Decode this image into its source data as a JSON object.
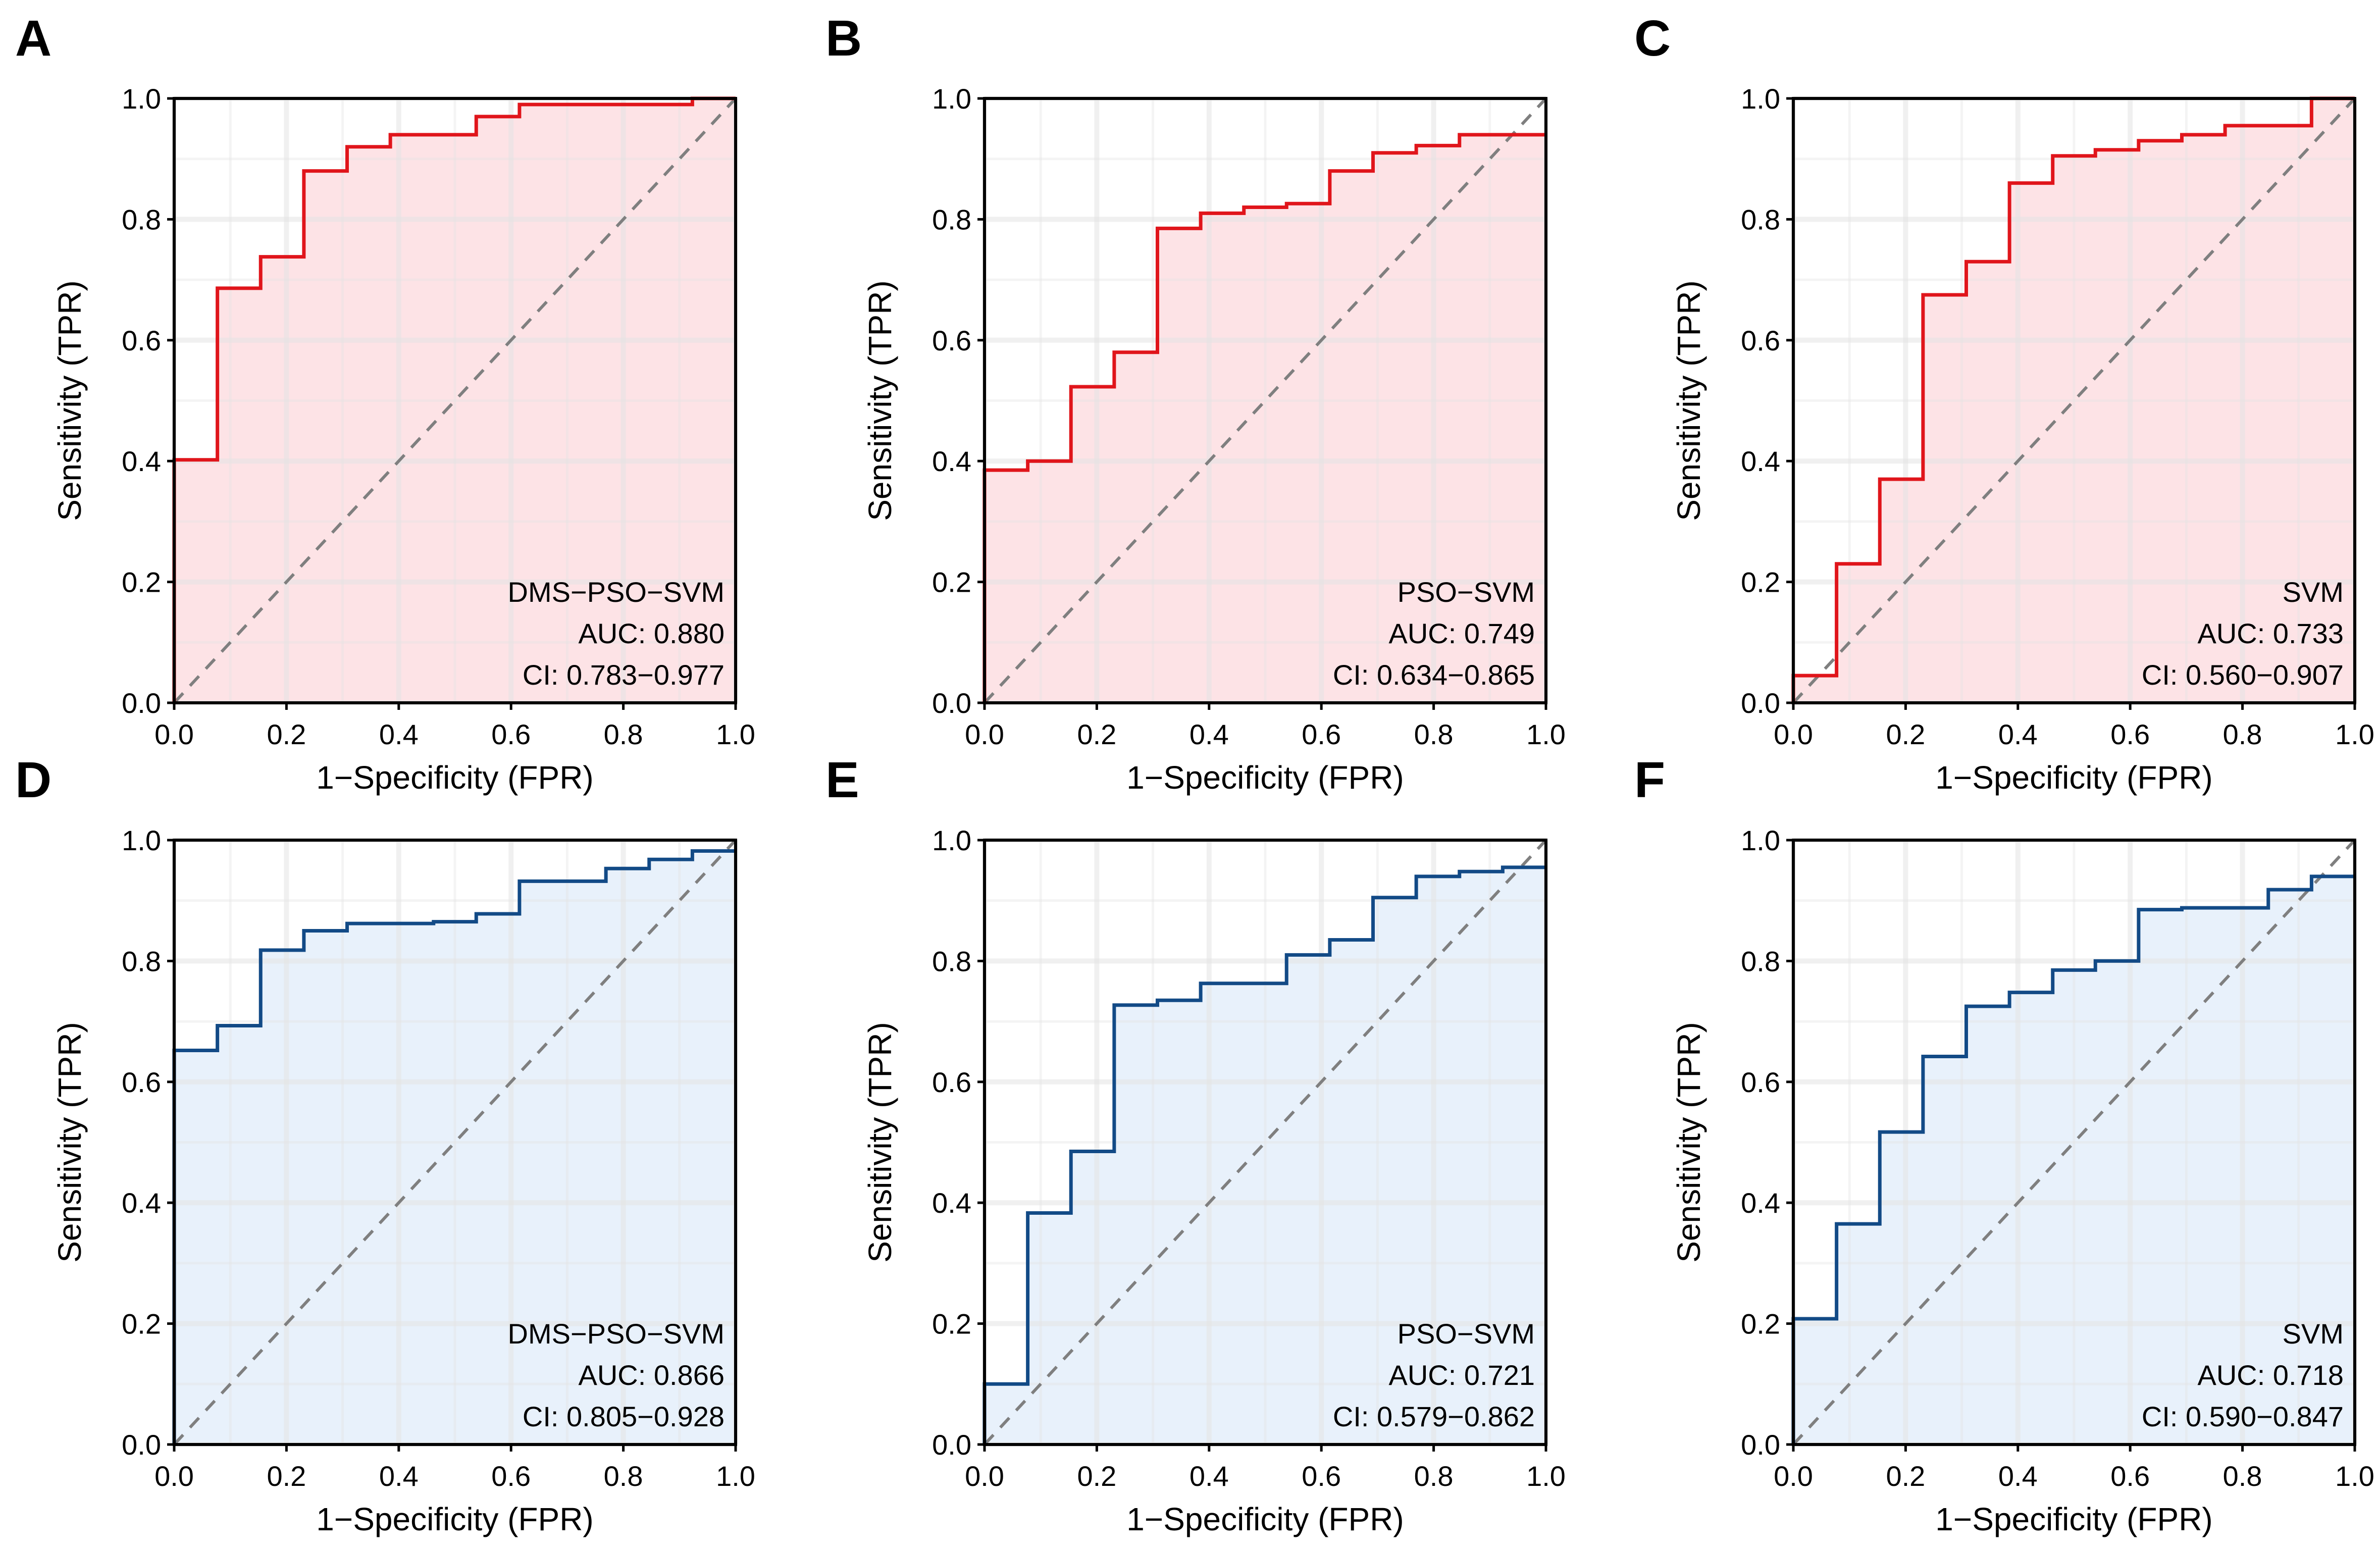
{
  "colors": {
    "train_line": "#e0151b",
    "train_fill": "#fde3e6",
    "test_line": "#124a86",
    "test_fill": "#e8f1fb",
    "diagonal": "#7f7f7f",
    "grid": "#e3e3e3"
  },
  "chart_data": [
    {
      "panel": "A",
      "type": "line",
      "model": "DMS−PSO−SVM",
      "auc_label": "AUC: 0.880",
      "ci_label": "CI: 0.783−0.977",
      "xlabel": "1−Specificity (FPR)",
      "ylabel": "Sensitivity (TPR)",
      "xticks": [
        "0.0",
        "0.2",
        "0.4",
        "0.6",
        "0.8",
        "1.0"
      ],
      "yticks": [
        "0.0",
        "0.2",
        "0.4",
        "0.6",
        "0.8",
        "1.0"
      ],
      "xlim": [
        0,
        1
      ],
      "ylim": [
        0,
        1
      ],
      "theme": "train",
      "fpr": [
        0,
        0,
        0,
        0.077,
        0.077,
        0.154,
        0.154,
        0.231,
        0.231,
        0.308,
        0.308,
        0.385,
        0.385,
        0.538,
        0.538,
        0.615,
        0.615,
        0.923,
        0.923,
        1.0
      ],
      "tpr": [
        0,
        0.402,
        0.402,
        0.402,
        0.686,
        0.686,
        0.738,
        0.738,
        0.88,
        0.88,
        0.92,
        0.92,
        0.94,
        0.94,
        0.97,
        0.97,
        0.99,
        0.99,
        1.0,
        1.0
      ]
    },
    {
      "panel": "B",
      "type": "line",
      "model": "PSO−SVM",
      "auc_label": "AUC: 0.749",
      "ci_label": "CI: 0.634−0.865",
      "xlabel": "1−Specificity (FPR)",
      "ylabel": "Sensitivity (TPR)",
      "xticks": [
        "0.0",
        "0.2",
        "0.4",
        "0.6",
        "0.8",
        "1.0"
      ],
      "yticks": [
        "0.0",
        "0.2",
        "0.4",
        "0.6",
        "0.8",
        "1.0"
      ],
      "xlim": [
        0,
        1
      ],
      "ylim": [
        0,
        1
      ],
      "theme": "train",
      "fpr": [
        0,
        0,
        0.077,
        0.077,
        0.154,
        0.154,
        0.231,
        0.231,
        0.308,
        0.308,
        0.385,
        0.385,
        0.462,
        0.462,
        0.538,
        0.538,
        0.615,
        0.615,
        0.692,
        0.692,
        0.769,
        0.769,
        0.846,
        0.846,
        1.0
      ],
      "tpr": [
        0,
        0.385,
        0.385,
        0.4,
        0.4,
        0.523,
        0.523,
        0.58,
        0.58,
        0.785,
        0.785,
        0.81,
        0.81,
        0.82,
        0.82,
        0.826,
        0.826,
        0.88,
        0.88,
        0.91,
        0.91,
        0.922,
        0.922,
        0.94,
        0.94
      ]
    },
    {
      "panel": "C",
      "type": "line",
      "model": "SVM",
      "auc_label": "AUC: 0.733",
      "ci_label": "CI: 0.560−0.907",
      "xlabel": "1−Specificity (FPR)",
      "ylabel": "Sensitivity (TPR)",
      "xticks": [
        "0.0",
        "0.2",
        "0.4",
        "0.6",
        "0.8",
        "1.0"
      ],
      "yticks": [
        "0.0",
        "0.2",
        "0.4",
        "0.6",
        "0.8",
        "1.0"
      ],
      "xlim": [
        0,
        1
      ],
      "ylim": [
        0,
        1
      ],
      "theme": "train",
      "fpr": [
        0,
        0,
        0.077,
        0.077,
        0.154,
        0.154,
        0.231,
        0.231,
        0.308,
        0.308,
        0.385,
        0.385,
        0.462,
        0.462,
        0.538,
        0.538,
        0.615,
        0.615,
        0.692,
        0.692,
        0.769,
        0.769,
        0.923,
        0.923,
        1.0
      ],
      "tpr": [
        0,
        0.045,
        0.045,
        0.23,
        0.23,
        0.37,
        0.37,
        0.675,
        0.675,
        0.73,
        0.73,
        0.86,
        0.86,
        0.905,
        0.905,
        0.915,
        0.915,
        0.93,
        0.93,
        0.94,
        0.94,
        0.955,
        0.955,
        1.0,
        1.0
      ]
    },
    {
      "panel": "D",
      "type": "line",
      "model": "DMS−PSO−SVM",
      "auc_label": "AUC: 0.866",
      "ci_label": "CI: 0.805−0.928",
      "xlabel": "1−Specificity (FPR)",
      "ylabel": "Sensitivity (TPR)",
      "xticks": [
        "0.0",
        "0.2",
        "0.4",
        "0.6",
        "0.8",
        "1.0"
      ],
      "yticks": [
        "0.0",
        "0.2",
        "0.4",
        "0.6",
        "0.8",
        "1.0"
      ],
      "xlim": [
        0,
        1
      ],
      "ylim": [
        0,
        1
      ],
      "theme": "test",
      "fpr": [
        0,
        0,
        0.077,
        0.077,
        0.154,
        0.154,
        0.231,
        0.231,
        0.308,
        0.308,
        0.462,
        0.462,
        0.538,
        0.538,
        0.615,
        0.615,
        0.769,
        0.769,
        0.846,
        0.846,
        0.923,
        0.923,
        1.0
      ],
      "tpr": [
        0,
        0.652,
        0.652,
        0.693,
        0.693,
        0.818,
        0.818,
        0.85,
        0.85,
        0.862,
        0.862,
        0.865,
        0.865,
        0.878,
        0.878,
        0.932,
        0.932,
        0.953,
        0.953,
        0.968,
        0.968,
        0.982,
        0.982
      ]
    },
    {
      "panel": "E",
      "type": "line",
      "model": "PSO−SVM",
      "auc_label": "AUC: 0.721",
      "ci_label": "CI: 0.579−0.862",
      "xlabel": "1−Specificity (FPR)",
      "ylabel": "Sensitivity (TPR)",
      "xticks": [
        "0.0",
        "0.2",
        "0.4",
        "0.6",
        "0.8",
        "1.0"
      ],
      "yticks": [
        "0.0",
        "0.2",
        "0.4",
        "0.6",
        "0.8",
        "1.0"
      ],
      "xlim": [
        0,
        1
      ],
      "ylim": [
        0,
        1
      ],
      "theme": "test",
      "fpr": [
        0,
        0,
        0.077,
        0.077,
        0.154,
        0.154,
        0.231,
        0.231,
        0.308,
        0.308,
        0.385,
        0.385,
        0.538,
        0.538,
        0.615,
        0.615,
        0.692,
        0.692,
        0.769,
        0.769,
        0.846,
        0.846,
        0.923,
        0.923,
        1.0
      ],
      "tpr": [
        0,
        0.1,
        0.1,
        0.383,
        0.383,
        0.485,
        0.485,
        0.727,
        0.727,
        0.735,
        0.735,
        0.763,
        0.763,
        0.81,
        0.81,
        0.835,
        0.835,
        0.905,
        0.905,
        0.94,
        0.94,
        0.948,
        0.948,
        0.955,
        0.955
      ]
    },
    {
      "panel": "F",
      "type": "line",
      "model": "SVM",
      "auc_label": "AUC: 0.718",
      "ci_label": "CI: 0.590−0.847",
      "xlabel": "1−Specificity (FPR)",
      "ylabel": "Sensitivity (TPR)",
      "xticks": [
        "0.0",
        "0.2",
        "0.4",
        "0.6",
        "0.8",
        "1.0"
      ],
      "yticks": [
        "0.0",
        "0.2",
        "0.4",
        "0.6",
        "0.8",
        "1.0"
      ],
      "xlim": [
        0,
        1
      ],
      "ylim": [
        0,
        1
      ],
      "theme": "test",
      "fpr": [
        0,
        0,
        0.077,
        0.077,
        0.154,
        0.154,
        0.231,
        0.231,
        0.308,
        0.308,
        0.385,
        0.385,
        0.462,
        0.462,
        0.538,
        0.538,
        0.615,
        0.615,
        0.692,
        0.692,
        0.846,
        0.846,
        0.923,
        0.923,
        1.0
      ],
      "tpr": [
        0,
        0.208,
        0.208,
        0.365,
        0.365,
        0.517,
        0.517,
        0.642,
        0.642,
        0.725,
        0.725,
        0.748,
        0.748,
        0.785,
        0.785,
        0.8,
        0.8,
        0.885,
        0.885,
        0.888,
        0.888,
        0.918,
        0.918,
        0.94,
        0.94
      ]
    }
  ]
}
